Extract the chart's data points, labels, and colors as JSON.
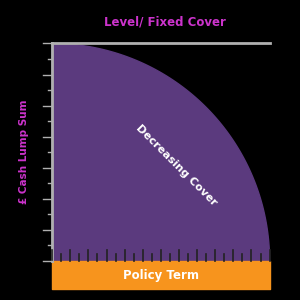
{
  "level_label": "Level/ Fixed Cover",
  "decreasing_label": "Decreasing Cover",
  "y_axis_label": "£ Cash Lump Sum",
  "x_axis_label": "Policy Term",
  "bg_color": "#000000",
  "fill_color": "#5b3a7e",
  "line_color": "#b0b0b0",
  "orange_color": "#f7941d",
  "level_label_color": "#cc33cc",
  "y_label_color": "#cc33cc",
  "white_text_color": "#ffffff",
  "tick_color": "#222222",
  "n_points": 300,
  "figsize": [
    3.0,
    3.0
  ],
  "dpi": 100
}
